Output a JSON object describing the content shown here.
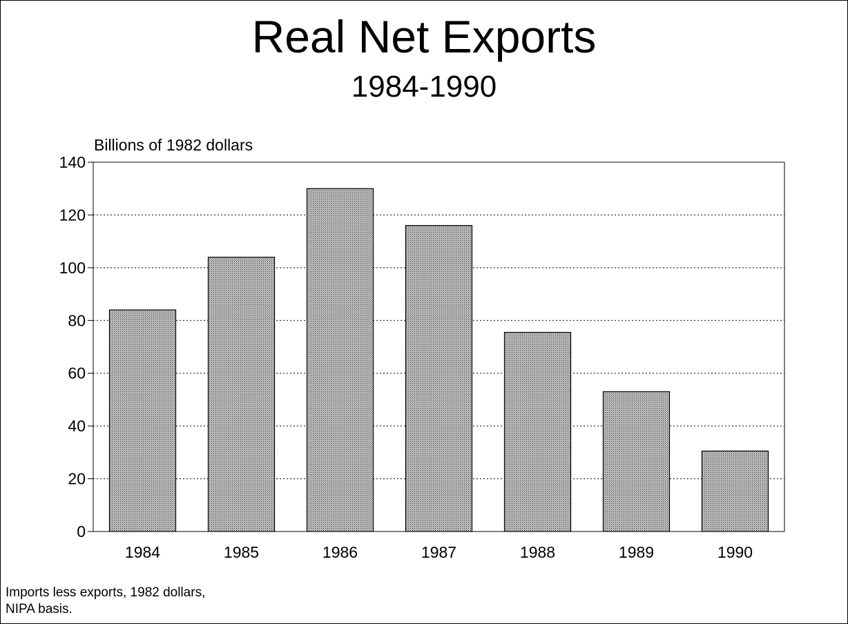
{
  "chart_data": {
    "type": "bar",
    "title": "Real Net Exports",
    "subtitle": "1984-1990",
    "ylabel": "Billions of 1982 dollars",
    "xlabel": "",
    "categories": [
      "1984",
      "1985",
      "1986",
      "1987",
      "1988",
      "1989",
      "1990"
    ],
    "values": [
      84,
      104,
      130,
      116,
      75.5,
      53,
      30.5
    ],
    "ylim": [
      0,
      140
    ],
    "yticks": [
      0,
      20,
      40,
      60,
      80,
      100,
      120,
      140
    ],
    "grid": "dotted horizontal",
    "bar_color": "#8a8a8a",
    "footnote": [
      "Imports less exports, 1982 dollars,",
      "NIPA basis."
    ]
  }
}
